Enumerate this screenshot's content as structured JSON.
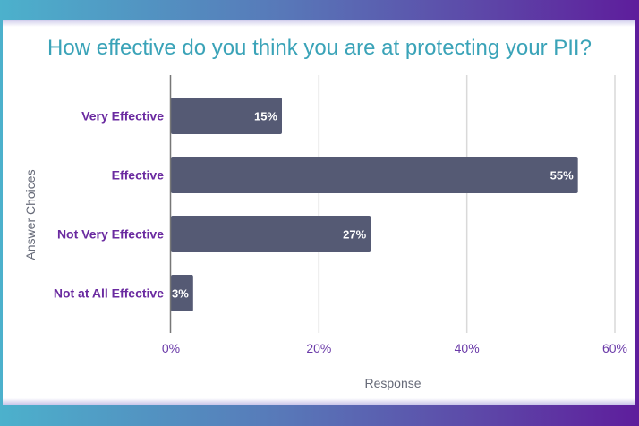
{
  "colors": {
    "bar": "#555a74",
    "title": "#3aa3b8",
    "category_label": "#6a2aa0",
    "tick_label": "#6a3aa8",
    "axis_title": "#666a78",
    "gridline": "#d9d9d9",
    "axis": "#777777"
  },
  "chart_data": {
    "type": "bar",
    "orientation": "horizontal",
    "title": "How effective do you think you are at protecting your PII?",
    "xlabel": "Response",
    "ylabel": "Answer Choices",
    "categories": [
      "Very Effective",
      "Effective",
      "Not Very Effective",
      "Not at All Effective"
    ],
    "values": [
      15,
      55,
      27,
      3
    ],
    "data_labels": [
      "15%",
      "55%",
      "27%",
      "3%"
    ],
    "xlim": [
      0,
      60
    ],
    "xticks": [
      0,
      20,
      40,
      60
    ],
    "xtick_labels": [
      "0%",
      "20%",
      "40%",
      "60%"
    ],
    "grid": true,
    "legend": "none"
  }
}
